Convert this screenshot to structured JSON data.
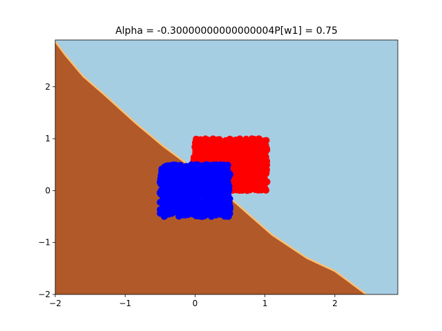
{
  "chart_data": {
    "type": "scatter",
    "title": "Alpha = -0.30000000000000004P[w1] = 0.75",
    "xlabel": "",
    "ylabel": "",
    "xlim": [
      -2,
      2.9
    ],
    "ylim": [
      -2,
      2.9
    ],
    "x_ticks": [
      -2,
      -1,
      0,
      1,
      2
    ],
    "x_tick_labels": [
      "−2",
      "−1",
      "0",
      "1",
      "2"
    ],
    "y_ticks": [
      -2,
      -1,
      0,
      1,
      2
    ],
    "y_tick_labels": [
      "−2",
      "−1",
      "0",
      "1",
      "2"
    ],
    "grid": false,
    "decision_boundary": {
      "description": "staircase line separating two filled regions",
      "points": [
        [
          -2.0,
          2.87
        ],
        [
          -1.85,
          2.6
        ],
        [
          -1.6,
          2.2
        ],
        [
          -1.3,
          1.85
        ],
        [
          -0.85,
          1.3
        ],
        [
          -0.45,
          0.85
        ],
        [
          0.05,
          0.35
        ],
        [
          0.55,
          -0.2
        ],
        [
          1.1,
          -0.85
        ],
        [
          1.6,
          -1.3
        ],
        [
          2.0,
          -1.55
        ],
        [
          2.45,
          -2.0
        ]
      ],
      "region_below_color": "#b15928",
      "region_above_color": "#a6cee3",
      "boundary_color": "#fdbf6f"
    },
    "series": [
      {
        "name": "class-red",
        "color": "#ff0000",
        "x_range": [
          -0.03,
          1.03
        ],
        "y_range": [
          0.0,
          1.0
        ],
        "shape": "square cluster"
      },
      {
        "name": "class-blue",
        "color": "#0000ff",
        "x_range": [
          -0.5,
          0.5
        ],
        "y_range": [
          -0.5,
          0.5
        ],
        "shape": "square cluster"
      }
    ]
  }
}
